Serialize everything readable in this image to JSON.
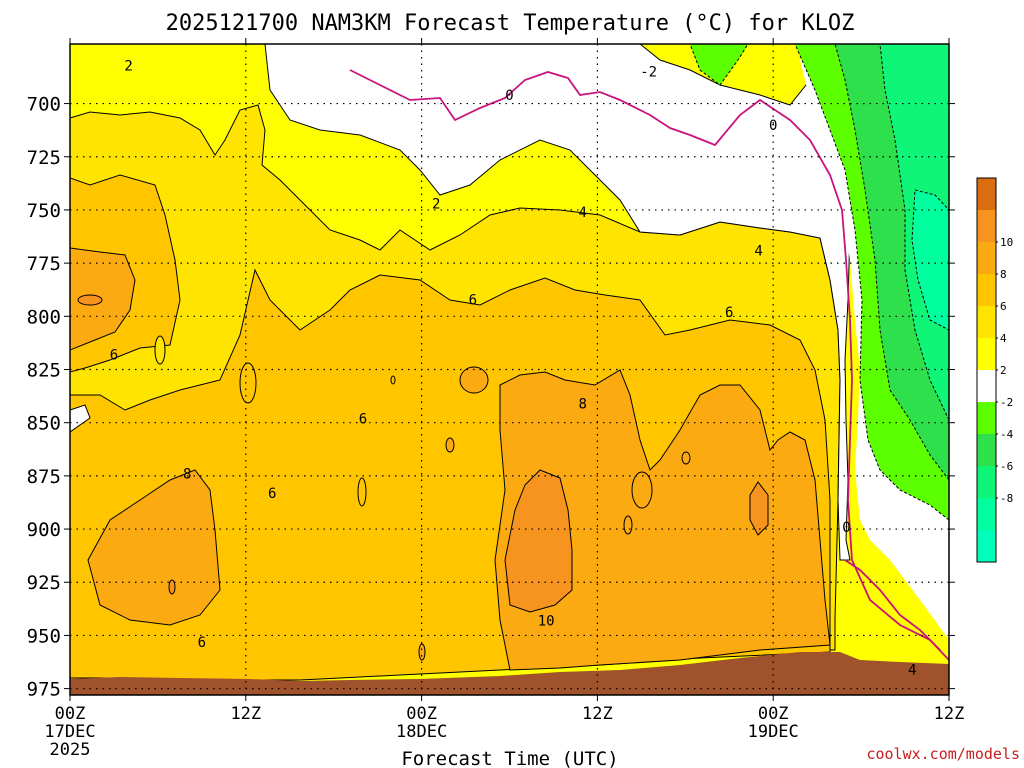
{
  "chart_data": {
    "type": "heatmap",
    "title": "2025121700 NAM3KM Forecast Temperature (°C) for KLOZ",
    "xlabel": "Forecast Time (UTC)",
    "ylabel": "",
    "credit": "coolwx.com/models",
    "x_range_hours": [
      0,
      60
    ],
    "y_range_hpa": [
      978,
      672
    ],
    "y_ticks": [
      "700",
      "725",
      "750",
      "775",
      "800",
      "825",
      "850",
      "875",
      "900",
      "925",
      "950",
      "975"
    ],
    "x_ticks": [
      {
        "hour": 0,
        "label": "00Z",
        "sub1": "17DEC",
        "sub2": "2025"
      },
      {
        "hour": 12,
        "label": "12Z",
        "sub1": "",
        "sub2": ""
      },
      {
        "hour": 24,
        "label": "00Z",
        "sub1": "18DEC",
        "sub2": ""
      },
      {
        "hour": 36,
        "label": "12Z",
        "sub1": "",
        "sub2": ""
      },
      {
        "hour": 48,
        "label": "00Z",
        "sub1": "19DEC",
        "sub2": ""
      },
      {
        "hour": 60,
        "label": "12Z",
        "sub1": "",
        "sub2": ""
      }
    ],
    "grid": true,
    "legend": {
      "placement": "right",
      "levels": [
        {
          "label": "",
          "color": "#d96d10"
        },
        {
          "label": "10",
          "color": "#f7931f"
        },
        {
          "label": "8",
          "color": "#fbaa11"
        },
        {
          "label": "6",
          "color": "#ffc600"
        },
        {
          "label": "4",
          "color": "#ffe400"
        },
        {
          "label": "2",
          "color": "#ffff00"
        },
        {
          "label": "-2",
          "color": "#ffffff"
        },
        {
          "label": "-4",
          "color": "#5cff00"
        },
        {
          "label": "-6",
          "color": "#2de04c"
        },
        {
          "label": "-8",
          "color": "#0ef577"
        },
        {
          "label": "",
          "color": "#00ff9e"
        },
        {
          "label": "",
          "color": "#00ffbb"
        }
      ]
    },
    "contour_labels": [
      {
        "text": "2",
        "hour": 4.0,
        "hpa": 682
      },
      {
        "text": "-2",
        "hour": 39.5,
        "hpa": 685
      },
      {
        "text": "0",
        "hour": 30.0,
        "hpa": 696
      },
      {
        "text": "0",
        "hour": 48.0,
        "hpa": 710
      },
      {
        "text": "2",
        "hour": 25.0,
        "hpa": 747
      },
      {
        "text": "4",
        "hour": 35.0,
        "hpa": 751
      },
      {
        "text": "4",
        "hour": 47.0,
        "hpa": 769
      },
      {
        "text": "6",
        "hour": 27.5,
        "hpa": 792
      },
      {
        "text": "6",
        "hour": 45.0,
        "hpa": 798
      },
      {
        "text": "6",
        "hour": 3.0,
        "hpa": 818
      },
      {
        "text": "8",
        "hour": 35.0,
        "hpa": 841
      },
      {
        "text": "6",
        "hour": 20.0,
        "hpa": 848
      },
      {
        "text": "8",
        "hour": 8.0,
        "hpa": 874
      },
      {
        "text": "6",
        "hour": 13.8,
        "hpa": 883
      },
      {
        "text": "0",
        "hour": 53.0,
        "hpa": 899
      },
      {
        "text": "10",
        "hour": 32.5,
        "hpa": 943
      },
      {
        "text": "6",
        "hour": 9.0,
        "hpa": 953
      },
      {
        "text": "4",
        "hour": 57.5,
        "hpa": 966
      }
    ]
  }
}
